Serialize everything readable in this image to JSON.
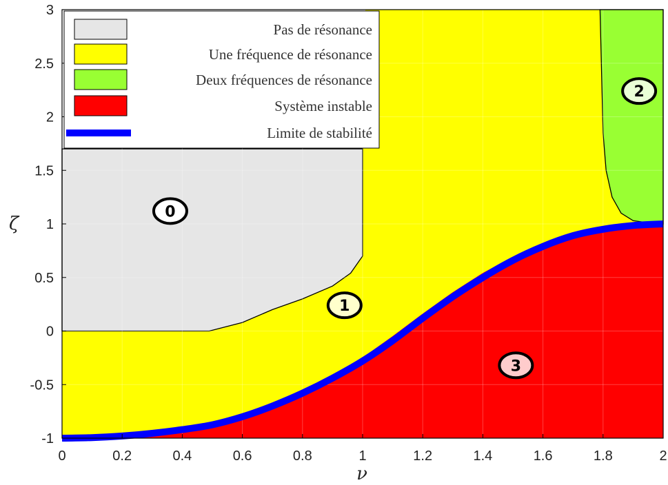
{
  "chart_data": {
    "type": "area",
    "title": "",
    "xlabel": "ν",
    "ylabel": "ζ",
    "xlim": [
      0,
      2
    ],
    "ylim": [
      -1,
      3
    ],
    "x_ticks": [
      "0",
      "0.2",
      "0.4",
      "0.6",
      "0.8",
      "1",
      "1.2",
      "1.4",
      "1.6",
      "1.8",
      "2"
    ],
    "y_ticks": [
      "-1",
      "-0.5",
      "0",
      "0.5",
      "1",
      "1.5",
      "2",
      "2.5",
      "3"
    ],
    "grid": true,
    "legend_position": "top-left",
    "legend": [
      {
        "label": "Pas de résonance",
        "color": "#e6e6e6",
        "kind": "patch"
      },
      {
        "label": "Une fréquence de résonance",
        "color": "#ffff00",
        "kind": "patch"
      },
      {
        "label": "Deux fréquences de résonance",
        "color": "#99ff33",
        "kind": "patch"
      },
      {
        "label": "Système instable",
        "color": "#ff0000",
        "kind": "patch"
      },
      {
        "label": "Limite de stabilité",
        "color": "#0000ff",
        "kind": "line"
      }
    ],
    "regions": [
      {
        "id": "0",
        "name": "Pas de résonance",
        "color": "#e6e6e6",
        "points": [
          [
            0,
            0
          ],
          [
            0.4,
            0
          ],
          [
            0.49,
            0
          ],
          [
            0.6,
            0.08
          ],
          [
            0.7,
            0.2
          ],
          [
            0.8,
            0.3
          ],
          [
            0.9,
            0.42
          ],
          [
            0.96,
            0.54
          ],
          [
            0.99,
            0.66
          ],
          [
            1,
            0.7
          ],
          [
            1,
            1.7
          ],
          [
            0,
            1.7
          ]
        ]
      },
      {
        "id": "1",
        "name": "Une fréquence de résonance",
        "color": "#ffff00",
        "points": [
          [
            0,
            -1
          ],
          [
            0,
            0
          ],
          [
            0.49,
            0
          ],
          [
            0.6,
            0.08
          ],
          [
            0.7,
            0.2
          ],
          [
            0.8,
            0.3
          ],
          [
            0.9,
            0.42
          ],
          [
            0.96,
            0.54
          ],
          [
            0.99,
            0.66
          ],
          [
            1,
            0.7
          ],
          [
            1,
            1.7
          ],
          [
            1.01,
            3
          ],
          [
            1.79,
            3
          ],
          [
            1.8,
            1.85
          ],
          [
            1.81,
            1.5
          ],
          [
            1.83,
            1.25
          ],
          [
            1.86,
            1.1
          ],
          [
            1.9,
            1.03
          ],
          [
            1.95,
            1.01
          ],
          [
            2,
            1
          ],
          [
            1.9,
            0.98
          ],
          [
            1.8,
            0.95
          ],
          [
            1.7,
            0.9
          ],
          [
            1.6,
            0.81
          ],
          [
            1.5,
            0.69
          ],
          [
            1.4,
            0.54
          ],
          [
            1.3,
            0.36
          ],
          [
            1.2,
            0.16
          ],
          [
            1.1,
            -0.05
          ],
          [
            1,
            -0.25
          ],
          [
            0.9,
            -0.43
          ],
          [
            0.8,
            -0.59
          ],
          [
            0.7,
            -0.72
          ],
          [
            0.6,
            -0.82
          ],
          [
            0.5,
            -0.9
          ],
          [
            0.4,
            -0.95
          ],
          [
            0.3,
            -0.98
          ],
          [
            0.2,
            -1
          ]
        ]
      },
      {
        "id": "2",
        "name": "Deux fréquences de résonance",
        "color": "#99ff33",
        "points": [
          [
            1.79,
            3
          ],
          [
            2,
            3
          ],
          [
            2,
            1
          ],
          [
            1.95,
            1.01
          ],
          [
            1.9,
            1.03
          ],
          [
            1.86,
            1.1
          ],
          [
            1.83,
            1.25
          ],
          [
            1.81,
            1.5
          ],
          [
            1.8,
            1.85
          ]
        ]
      },
      {
        "id": "3",
        "name": "Système instable",
        "color": "#ff0000",
        "points": [
          [
            0.2,
            -1
          ],
          [
            0.3,
            -0.98
          ],
          [
            0.4,
            -0.95
          ],
          [
            0.5,
            -0.9
          ],
          [
            0.6,
            -0.82
          ],
          [
            0.7,
            -0.72
          ],
          [
            0.8,
            -0.59
          ],
          [
            0.9,
            -0.43
          ],
          [
            1,
            -0.25
          ],
          [
            1.1,
            -0.05
          ],
          [
            1.2,
            0.16
          ],
          [
            1.3,
            0.36
          ],
          [
            1.4,
            0.54
          ],
          [
            1.5,
            0.69
          ],
          [
            1.6,
            0.81
          ],
          [
            1.7,
            0.9
          ],
          [
            1.8,
            0.95
          ],
          [
            1.9,
            0.98
          ],
          [
            2,
            1
          ],
          [
            2,
            -1
          ]
        ]
      }
    ],
    "stability_limit": {
      "name": "Limite de stabilité",
      "x": [
        0,
        0.1,
        0.2,
        0.3,
        0.4,
        0.5,
        0.6,
        0.7,
        0.8,
        0.9,
        1.0,
        1.1,
        1.2,
        1.3,
        1.4,
        1.5,
        1.6,
        1.7,
        1.8,
        1.9,
        2.0
      ],
      "y": [
        -1,
        -0.995,
        -0.98,
        -0.955,
        -0.92,
        -0.875,
        -0.8,
        -0.7,
        -0.58,
        -0.44,
        -0.28,
        -0.09,
        0.12,
        0.32,
        0.5,
        0.66,
        0.79,
        0.89,
        0.95,
        0.985,
        1.0
      ]
    },
    "markers": [
      {
        "label": "0",
        "x": 0.36,
        "y": 1.12,
        "fill": "#ffffff"
      },
      {
        "label": "1",
        "x": 0.94,
        "y": 0.24,
        "fill": "#ffffcc"
      },
      {
        "label": "2",
        "x": 1.92,
        "y": 2.24,
        "fill": "#eaffd6"
      },
      {
        "label": "3",
        "x": 1.51,
        "y": -0.32,
        "fill": "#ffcccc"
      }
    ]
  }
}
